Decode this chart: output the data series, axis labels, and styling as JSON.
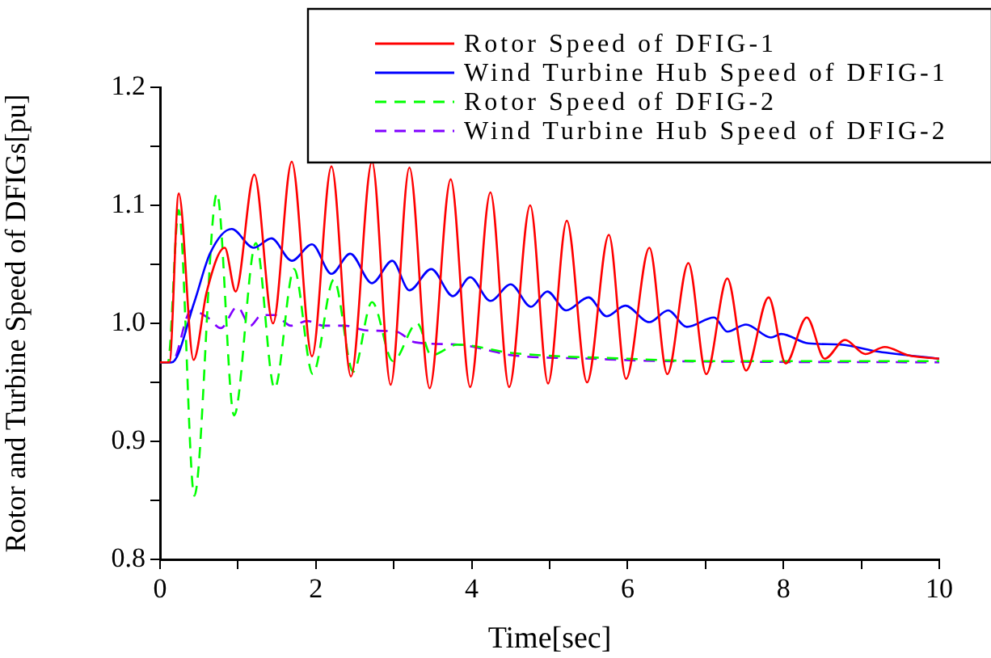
{
  "chart_data": {
    "type": "line",
    "xlabel": "Time[sec]",
    "ylabel": "Rotor and Turbine Speed of DFIGs[pu]",
    "xlim": [
      0,
      10
    ],
    "ylim": [
      0.8,
      1.2
    ],
    "xticks": [
      0,
      {
        "value": 1,
        "label": null
      },
      2,
      {
        "value": 3,
        "label": null
      },
      4,
      {
        "value": 5,
        "label": null
      },
      6,
      {
        "value": 7,
        "label": null
      },
      8,
      {
        "value": 9,
        "label": null
      },
      10
    ],
    "yticks": [
      0.8,
      {
        "value": 0.85,
        "label": null
      },
      0.9,
      {
        "value": 0.95,
        "label": null
      },
      {
        "value": 1,
        "label": "1.0"
      },
      {
        "value": 1.05,
        "label": null
      },
      1.1,
      {
        "value": 1.15,
        "label": null
      },
      1.2
    ],
    "legend": "top right",
    "series": [
      {
        "name": "Rotor Speed of DFIG-1",
        "color": "#ff0000",
        "line_style": "solid",
        "x": [
          0,
          0.12,
          0.24,
          0.43,
          0.6,
          0.83,
          0.97,
          1.21,
          1.45,
          1.69,
          1.95,
          2.2,
          2.45,
          2.72,
          2.96,
          3.2,
          3.46,
          3.73,
          3.98,
          4.24,
          4.48,
          4.75,
          4.98,
          5.22,
          5.48,
          5.76,
          5.98,
          6.28,
          6.51,
          6.78,
          7.01,
          7.28,
          7.52,
          7.81,
          8.03,
          8.3,
          8.53,
          8.79,
          9.05,
          9.3,
          9.6,
          10
        ],
        "values": [
          0.967,
          0.967,
          1.11,
          0.969,
          1.027,
          1.064,
          1.027,
          1.126,
          1.0,
          1.137,
          0.972,
          1.133,
          0.955,
          1.137,
          0.948,
          1.132,
          0.945,
          1.122,
          0.946,
          1.111,
          0.946,
          1.1,
          0.949,
          1.087,
          0.95,
          1.075,
          0.953,
          1.064,
          0.957,
          1.051,
          0.957,
          1.038,
          0.96,
          1.022,
          0.966,
          1.005,
          0.97,
          0.986,
          0.974,
          0.98,
          0.973,
          0.97
        ]
      },
      {
        "name": "Wind Turbine Hub Speed of DFIG-1",
        "color": "#0000ff",
        "line_style": "solid",
        "x": [
          0,
          0.15,
          0.44,
          0.64,
          0.92,
          1.2,
          1.43,
          1.69,
          1.95,
          2.2,
          2.44,
          2.72,
          2.98,
          3.2,
          3.48,
          3.76,
          3.98,
          4.24,
          4.5,
          4.76,
          4.97,
          5.21,
          5.5,
          5.73,
          5.97,
          6.28,
          6.52,
          6.76,
          7.11,
          7.28,
          7.52,
          7.84,
          7.97,
          8.32,
          8.73,
          9.22,
          10
        ],
        "values": [
          0.967,
          0.967,
          1.018,
          1.059,
          1.08,
          1.064,
          1.072,
          1.053,
          1.067,
          1.042,
          1.059,
          1.034,
          1.053,
          1.028,
          1.046,
          1.023,
          1.039,
          1.019,
          1.033,
          1.014,
          1.027,
          1.011,
          1.022,
          1.006,
          1.015,
          1.001,
          1.011,
          0.997,
          1.005,
          0.993,
          0.999,
          0.988,
          0.991,
          0.983,
          0.982,
          0.976,
          0.97
        ]
      },
      {
        "name": "Rotor Speed of DFIG-2",
        "color": "#00ff00",
        "line_style": "dashed",
        "x": [
          0,
          0.1,
          0.24,
          0.44,
          0.73,
          0.95,
          1.23,
          1.47,
          1.72,
          1.96,
          2.23,
          2.48,
          2.72,
          2.99,
          3.3,
          3.48,
          3.82,
          4.5,
          6,
          7,
          10
        ],
        "values": [
          0.967,
          0.967,
          1.096,
          0.854,
          1.11,
          0.922,
          1.068,
          0.945,
          1.046,
          0.957,
          1.037,
          0.959,
          1.018,
          0.968,
          1.0,
          0.973,
          0.982,
          0.975,
          0.97,
          0.968,
          0.968
        ]
      },
      {
        "name": "Wind Turbine Hub Speed of DFIG-2",
        "color": "#8000ff",
        "line_style": "dashed",
        "x": [
          0,
          0.15,
          0.4,
          0.61,
          0.78,
          0.99,
          1.16,
          1.3,
          1.47,
          1.68,
          1.89,
          2.1,
          2.37,
          2.65,
          3.03,
          3.27,
          3.82,
          4.52,
          5.55,
          6.45,
          10
        ],
        "values": [
          0.967,
          0.967,
          1.011,
          1.005,
          0.996,
          1.014,
          0.998,
          1.007,
          1.007,
          0.998,
          1.002,
          0.998,
          0.998,
          0.994,
          0.993,
          0.984,
          0.982,
          0.973,
          0.97,
          0.968,
          0.967
        ]
      }
    ]
  }
}
